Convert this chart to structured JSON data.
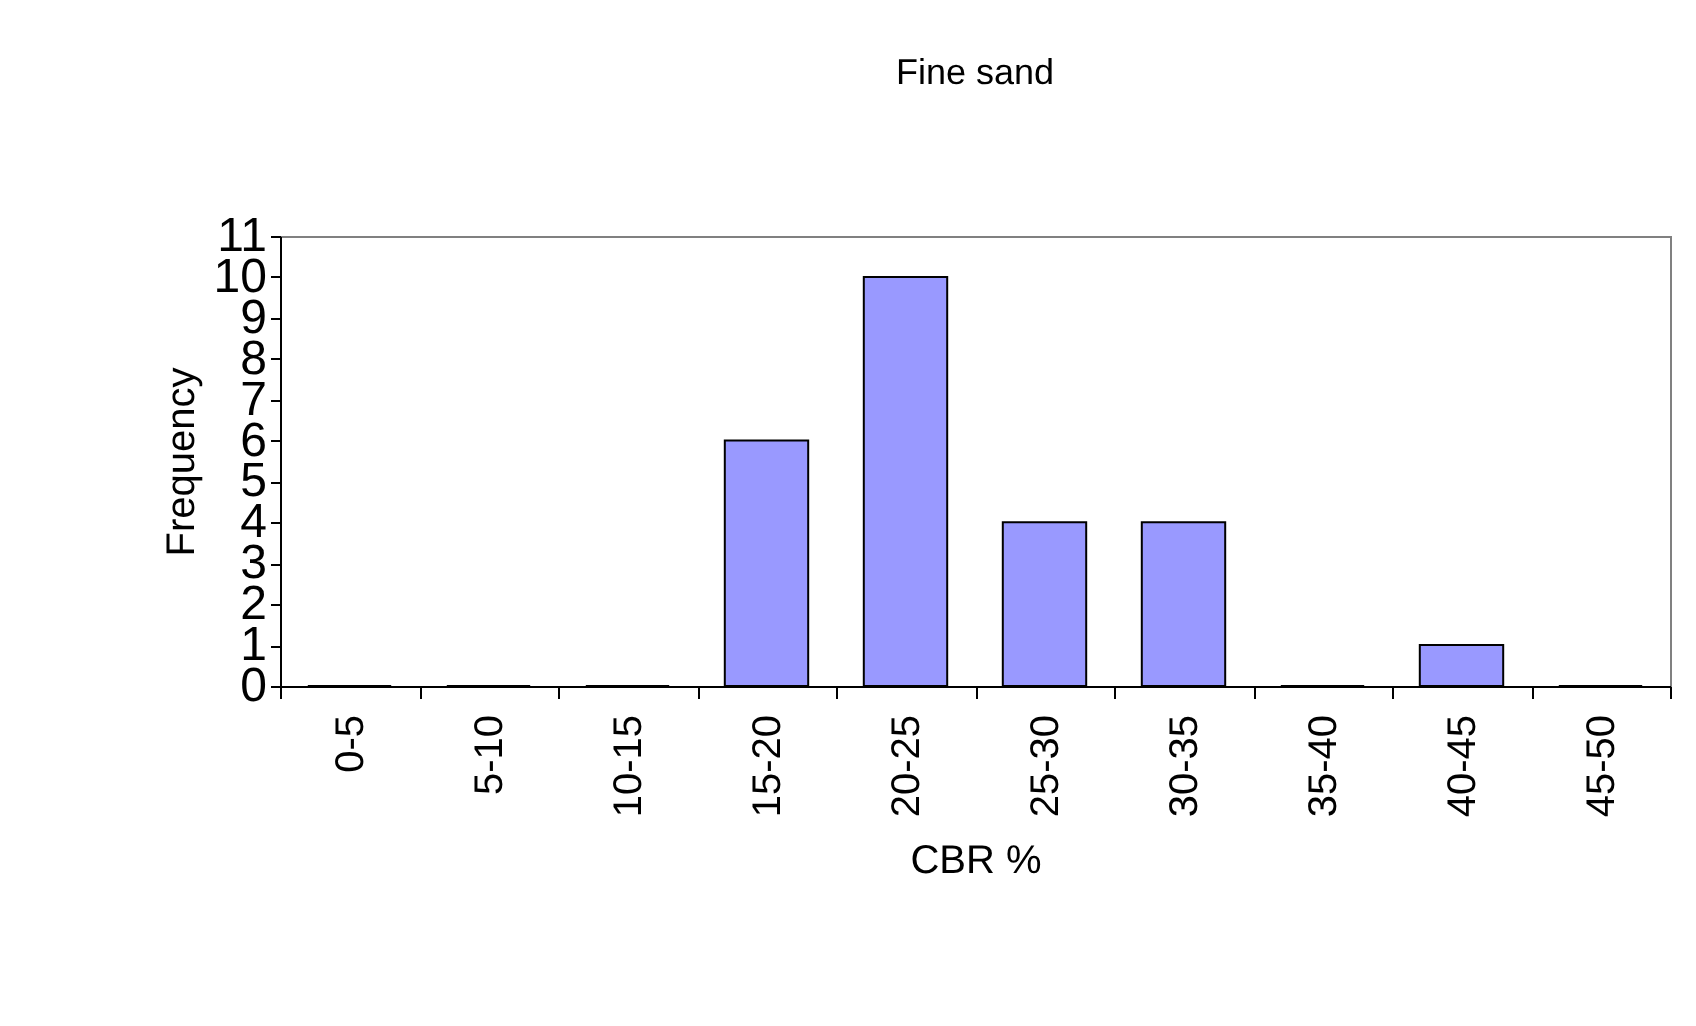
{
  "chart_data": {
    "type": "bar",
    "title": "Fine sand",
    "xlabel": "CBR %",
    "ylabel": "Frequency",
    "categories": [
      "0-5",
      "5-10",
      "10-15",
      "15-20",
      "20-25",
      "25-30",
      "30-35",
      "35-40",
      "40-45",
      "45-50"
    ],
    "values": [
      0,
      0,
      0,
      6,
      10,
      4,
      4,
      0,
      1,
      0
    ],
    "color": "#9999ff",
    "ylim": [
      0,
      11
    ],
    "yticks": [
      0,
      1,
      2,
      3,
      4,
      5,
      6,
      7,
      8,
      9,
      10,
      11
    ],
    "grid": false
  }
}
